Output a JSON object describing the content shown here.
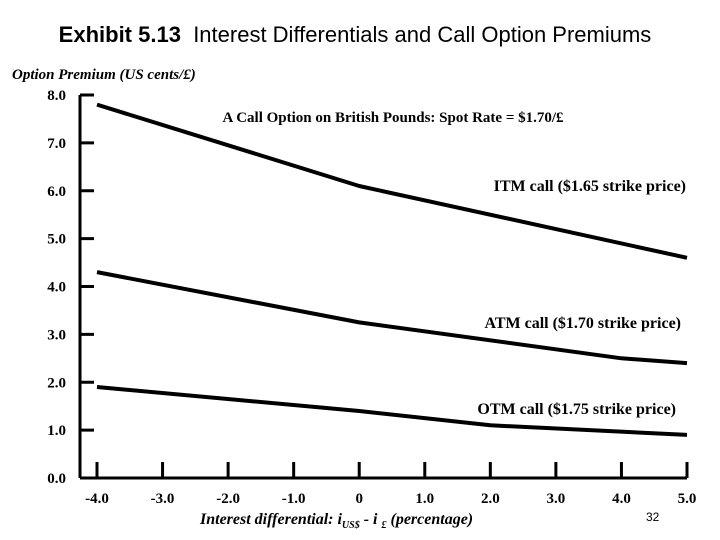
{
  "title": {
    "exhibit": "Exhibit 5.13",
    "text": "Interest Differentials and Call Option Premiums"
  },
  "chart_data": {
    "type": "line",
    "subtitle": "A Call Option on British Pounds: Spot Rate = $1.70/£",
    "ylabel": "Option Premium (US cents/£)",
    "xlabel": {
      "text": "Interest differential: i",
      "sub1": "US$",
      "mid": " - i ",
      "sub2": "£",
      "tail": " (percentage)"
    },
    "xlim": [
      -4.0,
      5.0
    ],
    "ylim": [
      0.0,
      8.0
    ],
    "x_ticks": [
      -4.0,
      -3.0,
      -2.0,
      -1.0,
      0,
      1.0,
      2.0,
      3.0,
      4.0,
      5.0
    ],
    "x_tick_labels": [
      "-4.0",
      "-3.0",
      "-2.0",
      "-1.0",
      "0",
      "1.0",
      "2.0",
      "3.0",
      "4.0",
      "5.0"
    ],
    "y_ticks": [
      0.0,
      1.0,
      2.0,
      3.0,
      4.0,
      5.0,
      6.0,
      7.0,
      8.0
    ],
    "y_tick_labels": [
      "0.0",
      "1.0",
      "2.0",
      "3.0",
      "4.0",
      "5.0",
      "6.0",
      "7.0",
      "8.0"
    ],
    "grid": false,
    "series": [
      {
        "name": "ITM call ($1.65 strike price)",
        "x": [
          -4.0,
          0.0,
          5.0
        ],
        "values": [
          7.8,
          6.1,
          4.6
        ]
      },
      {
        "name": "ATM call ($1.70 strike price)",
        "x": [
          -4.0,
          0.0,
          4.0,
          5.0
        ],
        "values": [
          4.3,
          3.25,
          2.5,
          2.4
        ]
      },
      {
        "name": "OTM call ($1.75 strike price)",
        "x": [
          -4.0,
          0.0,
          2.0,
          5.0
        ],
        "values": [
          1.9,
          1.4,
          1.1,
          0.9
        ]
      }
    ]
  },
  "page_number": "32"
}
